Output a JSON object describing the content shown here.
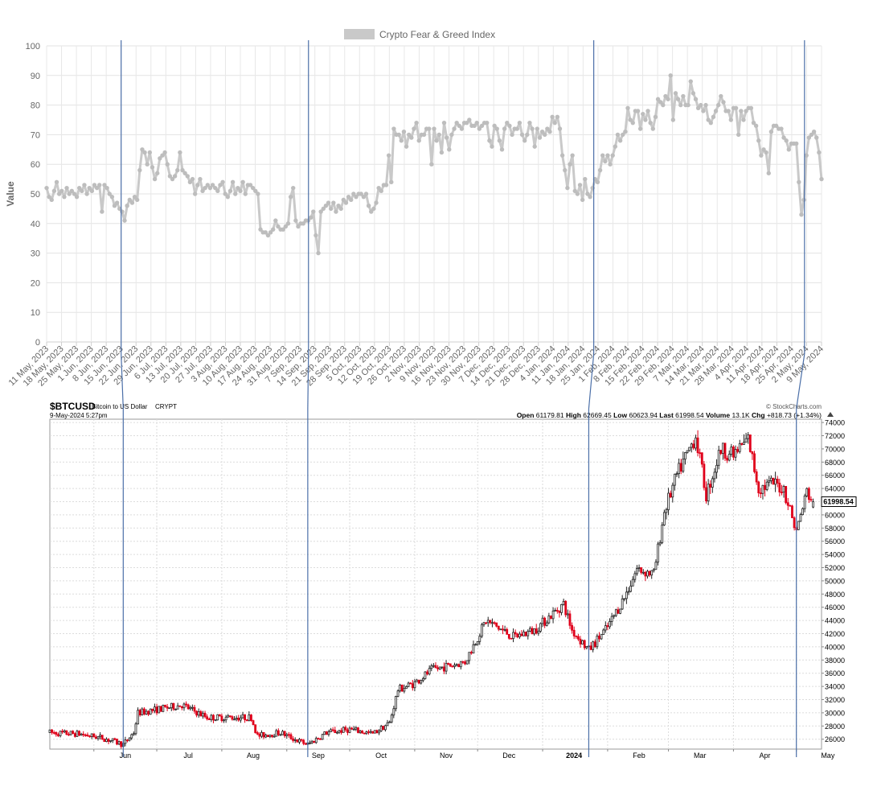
{
  "chart_data": [
    {
      "type": "line",
      "legend": "Crypto Fear & Greed Index",
      "legend_position": "top-center",
      "ylabel": "Value",
      "ylim": [
        0,
        100
      ],
      "yticks": [
        0,
        10,
        20,
        30,
        40,
        50,
        60,
        70,
        80,
        90,
        100
      ],
      "grid": true,
      "color": "#c9c9c9",
      "xticks": [
        "11 May, 2023",
        "18 May, 2023",
        "25 May, 2023",
        "1 Jun, 2023",
        "8 Jun, 2023",
        "15 Jun, 2023",
        "22 Jun, 2023",
        "29 Jun, 2023",
        "6 Jul, 2023",
        "13 Jul, 2023",
        "20 Jul, 2023",
        "27 Jul, 2023",
        "3 Aug, 2023",
        "10 Aug, 2023",
        "17 Aug, 2023",
        "24 Aug, 2023",
        "31 Aug, 2023",
        "7 Sep, 2023",
        "14 Sep, 2023",
        "21 Sep, 2023",
        "28 Sep, 2023",
        "5 Oct, 2023",
        "12 Oct, 2023",
        "19 Oct, 2023",
        "26 Oct, 2023",
        "2 Nov, 2023",
        "9 Nov, 2023",
        "16 Nov, 2023",
        "23 Nov, 2023",
        "30 Nov, 2023",
        "7 Dec, 2023",
        "14 Dec, 2023",
        "21 Dec, 2023",
        "28 Dec, 2023",
        "4 Jan, 2024",
        "11 Jan, 2024",
        "18 Jan, 2024",
        "25 Jan, 2024",
        "1 Feb, 2024",
        "8 Feb, 2024",
        "15 Feb, 2024",
        "22 Feb, 2024",
        "29 Feb, 2024",
        "7 Mar, 2024",
        "14 Mar, 2024",
        "21 Mar, 2024",
        "28 Mar, 2024",
        "4 Apr, 2024",
        "11 Apr, 2024",
        "18 Apr, 2024",
        "25 Apr, 2024",
        "2 May, 2024",
        "9 May, 2024"
      ],
      "series": [
        {
          "values": [
            52,
            49,
            48,
            51,
            54,
            50,
            51,
            49,
            52,
            50,
            51,
            50,
            49,
            52,
            51,
            53,
            50,
            52,
            51,
            53,
            52,
            53,
            44,
            53,
            52,
            50,
            49,
            46,
            47,
            45,
            44,
            41,
            46,
            48,
            47,
            49,
            48,
            58,
            65,
            64,
            60,
            64,
            59,
            55,
            57,
            62,
            63,
            64,
            60,
            56,
            55,
            56,
            58,
            64,
            58,
            57,
            56,
            54,
            55,
            50,
            53,
            55,
            51,
            52,
            53,
            52,
            53,
            52,
            51,
            53,
            54,
            50,
            49,
            51,
            54,
            50,
            52,
            51,
            54,
            50,
            53,
            53,
            52,
            51,
            50,
            38,
            37,
            37,
            36,
            37,
            38,
            41,
            39,
            38,
            38,
            39,
            40,
            49,
            52,
            41,
            39,
            40,
            40,
            41,
            41,
            42,
            44,
            36,
            30,
            44,
            45,
            46,
            47,
            45,
            47,
            44,
            46,
            45,
            48,
            47,
            49,
            48,
            50,
            49,
            50,
            50,
            49,
            50,
            46,
            44,
            45,
            47,
            52,
            51,
            53,
            53,
            63,
            54,
            72,
            70,
            70,
            68,
            71,
            66,
            70,
            69,
            72,
            74,
            68,
            70,
            70,
            72,
            72,
            60,
            72,
            68,
            70,
            64,
            74,
            69,
            65,
            70,
            72,
            74,
            73,
            72,
            74,
            74,
            75,
            73,
            73,
            74,
            72,
            73,
            74,
            74,
            68,
            66,
            73,
            72,
            68,
            65,
            72,
            74,
            73,
            70,
            72,
            72,
            74,
            70,
            68,
            70,
            74,
            72,
            66,
            72,
            69,
            71,
            70,
            72,
            71,
            76,
            74,
            76,
            72,
            63,
            58,
            52,
            60,
            63,
            51,
            50,
            53,
            48,
            55,
            50,
            49,
            52,
            55,
            54,
            58,
            63,
            61,
            63,
            60,
            63,
            66,
            70,
            68,
            70,
            71,
            79,
            75,
            74,
            78,
            78,
            72,
            77,
            75,
            78,
            74,
            72,
            76,
            82,
            81,
            80,
            83,
            82,
            90,
            75,
            84,
            82,
            80,
            83,
            80,
            80,
            88,
            84,
            82,
            79,
            80,
            78,
            80,
            75,
            74,
            76,
            78,
            80,
            83,
            81,
            78,
            78,
            75,
            79,
            79,
            70,
            78,
            75,
            78,
            79,
            79,
            74,
            73,
            68,
            63,
            65,
            64,
            57,
            71,
            73,
            73,
            72,
            72,
            69,
            68,
            65,
            67,
            67,
            67,
            54,
            43,
            48,
            63,
            69,
            70,
            71,
            69,
            64,
            55
          ]
        }
      ]
    },
    {
      "type": "candlestick",
      "title": "$BTCUSD",
      "subtitle": "Bitcoin to US Dollar",
      "exchange": "CRYPT",
      "date": "9-May-2024 5:27pm",
      "source": "© StockCharts.com",
      "stats": {
        "open_label": "Open",
        "open": "61179.81",
        "high_label": "High",
        "high": "62669.45",
        "low_label": "Low",
        "low": "60623.94",
        "last_label": "Last",
        "last": "61998.54",
        "volume_label": "Volume",
        "volume": "13.1K",
        "chg_label": "Chg",
        "chg": "+818.73 (+1.34%)"
      },
      "last_price_tag": "61998.54",
      "ylim": [
        24500,
        74500
      ],
      "yticks": [
        26000,
        28000,
        30000,
        32000,
        34000,
        36000,
        38000,
        40000,
        42000,
        44000,
        46000,
        48000,
        50000,
        52000,
        54000,
        56000,
        58000,
        60000,
        62000,
        64000,
        66000,
        68000,
        70000,
        72000,
        74000
      ],
      "xticks": [
        "Jun",
        "Jul",
        "Aug",
        "Sep",
        "Oct",
        "Nov",
        "Dec",
        "2024",
        "Feb",
        "Mar",
        "Apr",
        "May"
      ],
      "up_color": "#222222",
      "down_color": "#e0001a",
      "grid": true,
      "anchors": [
        [
          "2023-05-11",
          27000
        ],
        [
          "2023-05-25",
          26800
        ],
        [
          "2023-06-05",
          26200
        ],
        [
          "2023-06-15",
          25200
        ],
        [
          "2023-06-20",
          27000
        ],
        [
          "2023-06-22",
          30000
        ],
        [
          "2023-07-01",
          30500
        ],
        [
          "2023-07-13",
          31200
        ],
        [
          "2023-07-25",
          29300
        ],
        [
          "2023-08-15",
          29300
        ],
        [
          "2023-08-18",
          26500
        ],
        [
          "2023-08-29",
          27000
        ],
        [
          "2023-09-06",
          25800
        ],
        [
          "2023-09-11",
          25200
        ],
        [
          "2023-09-20",
          27000
        ],
        [
          "2023-10-01",
          27500
        ],
        [
          "2023-10-12",
          26800
        ],
        [
          "2023-10-20",
          28500
        ],
        [
          "2023-10-24",
          33500
        ],
        [
          "2023-11-01",
          34500
        ],
        [
          "2023-11-09",
          36500
        ],
        [
          "2023-11-25",
          37700
        ],
        [
          "2023-12-05",
          44000
        ],
        [
          "2023-12-18",
          41500
        ],
        [
          "2023-12-28",
          42500
        ],
        [
          "2024-01-11",
          46500
        ],
        [
          "2024-01-15",
          42500
        ],
        [
          "2024-01-23",
          39500
        ],
        [
          "2024-02-01",
          43000
        ],
        [
          "2024-02-09",
          47500
        ],
        [
          "2024-02-15",
          51800
        ],
        [
          "2024-02-23",
          51000
        ],
        [
          "2024-02-28",
          60500
        ],
        [
          "2024-03-05",
          66000
        ],
        [
          "2024-03-14",
          72000
        ],
        [
          "2024-03-19",
          63000
        ],
        [
          "2024-03-26",
          70000
        ],
        [
          "2024-04-01",
          69000
        ],
        [
          "2024-04-08",
          71500
        ],
        [
          "2024-04-13",
          64000
        ],
        [
          "2024-04-20",
          64800
        ],
        [
          "2024-04-25",
          64000
        ],
        [
          "2024-05-01",
          57500
        ],
        [
          "2024-05-06",
          63500
        ],
        [
          "2024-05-09",
          62000
        ]
      ]
    }
  ],
  "markers": {
    "dates": [
      "2023-06-15",
      "2023-09-11",
      "2024-01-23",
      "2024-05-01"
    ],
    "color": "#4b6fa8"
  }
}
